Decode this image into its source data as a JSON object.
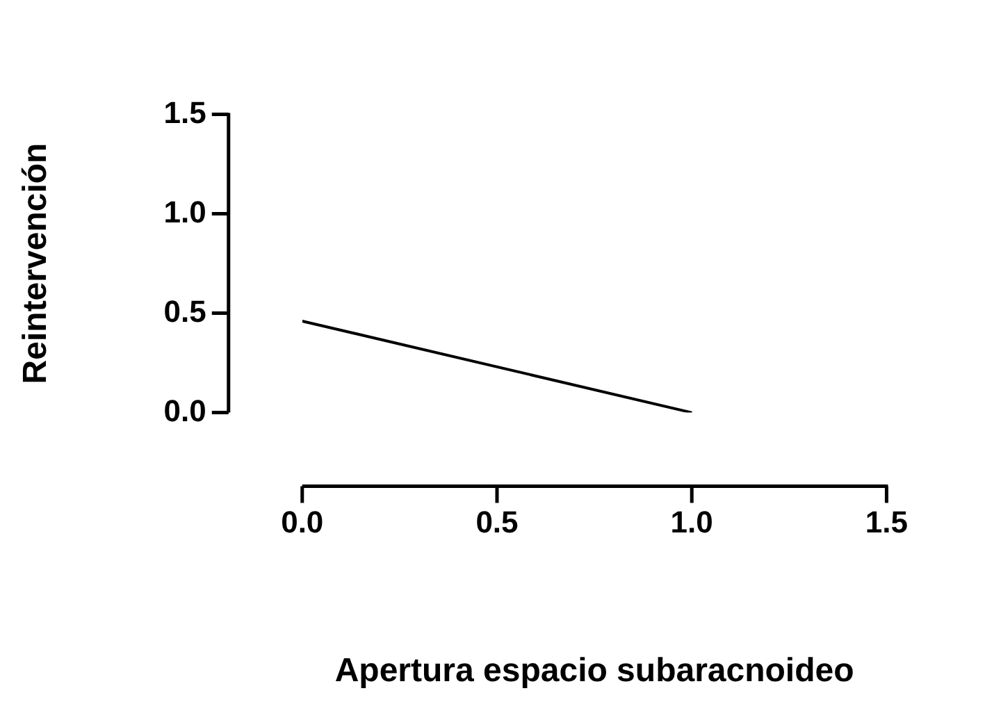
{
  "chart_data": {
    "type": "line",
    "xlabel": "Apertura espacio subaracnoideo",
    "ylabel": "Reintervención",
    "x": [
      0,
      1
    ],
    "series": [
      {
        "color": "#000000",
        "values": [
          0.46,
          0
        ]
      }
    ],
    "xlim": [
      0,
      1.5
    ],
    "ylim": [
      0,
      1.5
    ],
    "xticks": [
      {
        "value": 0,
        "label": "0.0"
      },
      0.5,
      {
        "value": 1,
        "label": "1.0"
      },
      1.5
    ],
    "yticks": [
      {
        "value": 0,
        "label": "0.0"
      },
      0.5,
      {
        "value": 1,
        "label": "1.0"
      },
      1.5
    ],
    "grid": false,
    "legend": false,
    "marker": "none",
    "line_style": "solid"
  }
}
